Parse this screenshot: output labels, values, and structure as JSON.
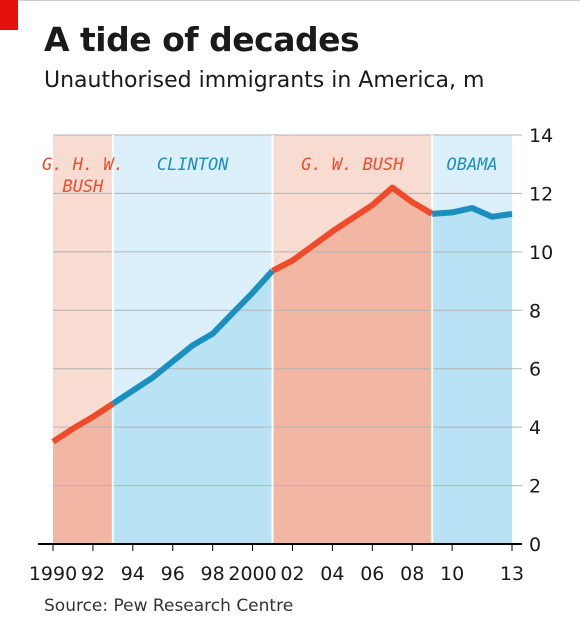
{
  "header": {
    "title": "A tide of decades",
    "subtitle": "Unauthorised immigrants in America, m"
  },
  "footer": {
    "source": "Source: Pew Research Centre"
  },
  "colors": {
    "republican_line": "#ef4b2b",
    "democrat_line": "#1a8fc0",
    "republican_fill": "#f2b7a3",
    "republican_bg": "#f8dcd1",
    "democrat_fill": "#b9e3f5",
    "democrat_bg": "#dbf0fa",
    "grid": "#b3b3b3",
    "axis": "#000000",
    "republican_label": "#ef4b2b",
    "democrat_label": "#1a8fc0"
  },
  "chart_data": {
    "type": "area",
    "ylim": [
      0,
      14
    ],
    "yticks": [
      0,
      2,
      4,
      6,
      8,
      10,
      12,
      14
    ],
    "xlim": [
      1990,
      2013
    ],
    "xticks": [
      {
        "value": 1990,
        "label": "1990"
      },
      {
        "value": 1992,
        "label": "92"
      },
      {
        "value": 1994,
        "label": "94"
      },
      {
        "value": 1996,
        "label": "96"
      },
      {
        "value": 1998,
        "label": "98"
      },
      {
        "value": 2000,
        "label": "2000"
      },
      {
        "value": 2002,
        "label": "02"
      },
      {
        "value": 2004,
        "label": "04"
      },
      {
        "value": 2006,
        "label": "06"
      },
      {
        "value": 2008,
        "label": "08"
      },
      {
        "value": 2010,
        "label": "10"
      },
      {
        "value": 2013,
        "label": "13"
      }
    ],
    "grid": true,
    "eras": [
      {
        "lines": [
          "G. H. W.",
          "BUSH"
        ],
        "party": "republican",
        "start": 1990,
        "end": 1993
      },
      {
        "lines": [
          "CLINTON"
        ],
        "party": "democrat",
        "start": 1993,
        "end": 2001
      },
      {
        "lines": [
          "G. W. BUSH"
        ],
        "party": "republican",
        "start": 2001,
        "end": 2009
      },
      {
        "lines": [
          "OBAMA"
        ],
        "party": "democrat",
        "start": 2009,
        "end": 2013
      }
    ],
    "series": [
      {
        "x": [
          1990,
          1991,
          1992,
          1993,
          1994,
          1995,
          1996,
          1997,
          1998,
          1999,
          2000,
          2001,
          2002,
          2003,
          2004,
          2005,
          2006,
          2007,
          2008,
          2009,
          2010,
          2011,
          2012,
          2013
        ],
        "values": [
          3.5,
          3.95,
          4.35,
          4.8,
          5.25,
          5.7,
          6.25,
          6.8,
          7.2,
          7.9,
          8.6,
          9.35,
          9.7,
          10.2,
          10.7,
          11.15,
          11.6,
          12.2,
          11.7,
          11.3,
          11.35,
          11.5,
          11.2,
          11.3
        ]
      }
    ]
  }
}
